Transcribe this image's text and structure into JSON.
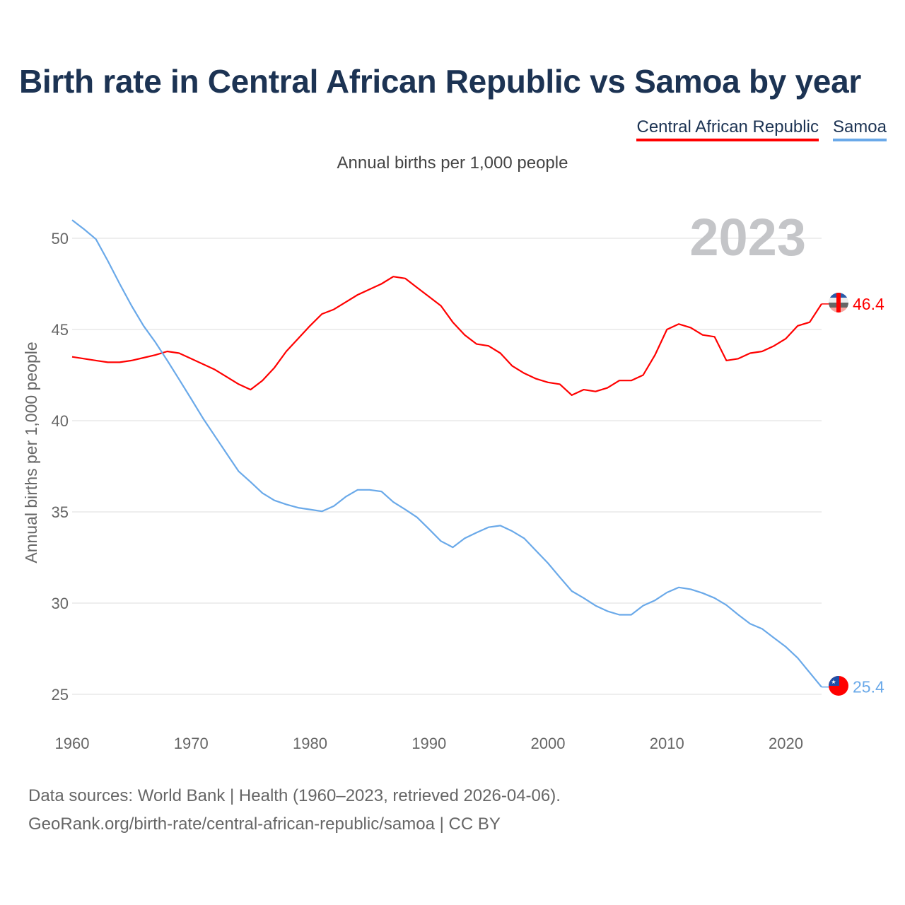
{
  "title": "Birth rate in Central African Republic vs Samoa by year",
  "legend": [
    {
      "label": "Central African Republic",
      "color": "#ff0000"
    },
    {
      "label": "Samoa",
      "color": "#6aa9e9"
    }
  ],
  "footer": {
    "line1": "Data sources: World Bank | Health (1960–2023, retrieved 2026-04-06).",
    "line2": "GeoRank.org/birth-rate/central-african-republic/samoa | CC BY"
  },
  "chart_data": {
    "type": "line",
    "title": "Birth rate in Central African Republic vs Samoa by year",
    "subtitle": "Annual births per 1,000 people",
    "ylabel": "Annual births per 1,000 people",
    "xlabel": "",
    "year_watermark": "2023",
    "xlim": [
      1960,
      2023
    ],
    "ylim": [
      25,
      50
    ],
    "xticks": [
      1960,
      1970,
      1980,
      1990,
      2000,
      2010,
      2020
    ],
    "yticks": [
      25,
      30,
      35,
      40,
      45,
      50
    ],
    "grid": true,
    "legend_position": "top-right",
    "x": [
      1960,
      1961,
      1962,
      1963,
      1964,
      1965,
      1966,
      1967,
      1968,
      1969,
      1970,
      1971,
      1972,
      1973,
      1974,
      1975,
      1976,
      1977,
      1978,
      1979,
      1980,
      1981,
      1982,
      1983,
      1984,
      1985,
      1986,
      1987,
      1988,
      1989,
      1990,
      1991,
      1992,
      1993,
      1994,
      1995,
      1996,
      1997,
      1998,
      1999,
      2000,
      2001,
      2002,
      2003,
      2004,
      2005,
      2006,
      2007,
      2008,
      2009,
      2010,
      2011,
      2012,
      2013,
      2014,
      2015,
      2016,
      2017,
      2018,
      2019,
      2020,
      2021,
      2022,
      2023
    ],
    "series": [
      {
        "name": "Central African Republic",
        "color": "#ff0000",
        "end_label": "46.4",
        "values": [
          43.5,
          43.4,
          43.3,
          43.2,
          43.2,
          43.3,
          43.45,
          43.6,
          43.8,
          43.7,
          43.4,
          43.1,
          42.8,
          42.4,
          42.0,
          41.7,
          42.2,
          42.9,
          43.8,
          44.5,
          45.2,
          45.85,
          46.1,
          46.5,
          46.9,
          47.2,
          47.5,
          47.9,
          47.8,
          47.3,
          46.8,
          46.3,
          45.4,
          44.7,
          44.2,
          44.1,
          43.7,
          43.0,
          42.6,
          42.3,
          42.1,
          42.0,
          41.4,
          41.7,
          41.6,
          41.8,
          42.2,
          42.2,
          42.5,
          43.6,
          45.0,
          45.3,
          45.1,
          44.7,
          44.6,
          43.3,
          43.4,
          43.7,
          43.8,
          44.1,
          44.5,
          45.2,
          45.4,
          46.4
        ]
      },
      {
        "name": "Samoa",
        "color": "#6aa9e9",
        "end_label": "25.4",
        "values": [
          51.0,
          50.5,
          49.95,
          48.76,
          47.5,
          46.3,
          45.2,
          44.3,
          43.3,
          42.26,
          41.2,
          40.13,
          39.16,
          38.19,
          37.22,
          36.64,
          36.03,
          35.63,
          35.41,
          35.23,
          35.13,
          35.03,
          35.32,
          35.83,
          36.21,
          36.21,
          36.12,
          35.54,
          35.13,
          34.7,
          34.06,
          33.4,
          33.06,
          33.55,
          33.87,
          34.16,
          34.25,
          33.94,
          33.55,
          32.87,
          32.19,
          31.42,
          30.66,
          30.28,
          29.86,
          29.56,
          29.36,
          29.36,
          29.86,
          30.15,
          30.58,
          30.86,
          30.76,
          30.55,
          30.28,
          29.89,
          29.36,
          28.87,
          28.59,
          28.09,
          27.6,
          26.99,
          26.19,
          25.4
        ]
      }
    ]
  }
}
